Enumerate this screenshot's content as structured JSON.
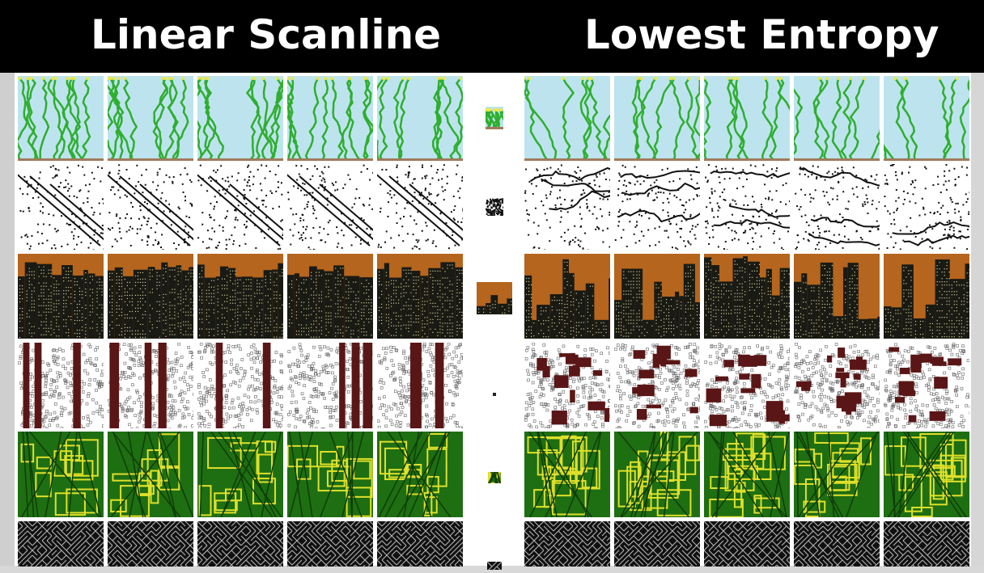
{
  "header": {
    "left_title": "Linear Scanline",
    "right_title": "Lowest Entropy"
  },
  "rows": [
    {
      "name": "flowers",
      "colors": {
        "bg": "#bde4ee",
        "fg": "#2fae2f",
        "accent": "#e8e84a"
      }
    },
    {
      "name": "dots",
      "colors": {
        "bg": "#ffffff",
        "fg": "#111111"
      }
    },
    {
      "name": "city",
      "colors": {
        "bg": "#b5651d",
        "fg": "#1a1a14",
        "accent": "#cfcf9a"
      }
    },
    {
      "name": "rooms",
      "colors": {
        "bg": "#ffffff",
        "fg": "#5a1616"
      }
    },
    {
      "name": "circuits",
      "colors": {
        "bg": "#1e6e12",
        "fg": "#e0e02a"
      }
    },
    {
      "name": "maze",
      "colors": {
        "bg": "#111111",
        "fg": "#bbbbbb"
      }
    }
  ]
}
